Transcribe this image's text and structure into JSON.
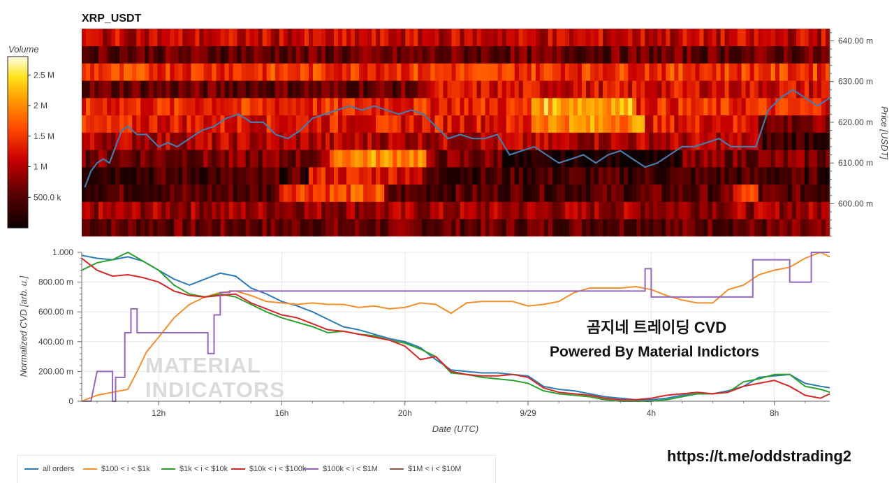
{
  "colors": {
    "all_orders": "#2c7bb6",
    "r100_1k": "#f28e2b",
    "r1k_10k": "#2ca02c",
    "r10k_100k": "#d62728",
    "r100k_1m": "#9467bd",
    "r1m_10m": "#8c564b",
    "price_line": "#4a78a8"
  },
  "url_caption": "https://t.me/oddstrading2",
  "chart_data": [
    {
      "type": "heatmap",
      "title": "XRP_USDT",
      "ylabel": "Price [USDT]",
      "ylim": [
        592,
        643
      ],
      "y_ticks": [
        {
          "value": 600,
          "label": "600.00 m"
        },
        {
          "value": 610,
          "label": "610.00 m"
        },
        {
          "value": 620,
          "label": "620.00 m"
        },
        {
          "value": 630,
          "label": "630.00 m"
        },
        {
          "value": 640,
          "label": "640.00 m"
        }
      ],
      "colorbar": {
        "title": "Volume",
        "range": [
          0,
          2.8
        ],
        "ticks": [
          {
            "value": 0.5,
            "label": "500.0 k"
          },
          {
            "value": 1.0,
            "label": "1 M"
          },
          {
            "value": 1.5,
            "label": "1.5 M"
          },
          {
            "value": 2.0,
            "label": "2 M"
          },
          {
            "value": 2.5,
            "label": "2.5 M"
          }
        ]
      },
      "row_base_volume": [
        0.6,
        0.9,
        0.5,
        0.4,
        0.7,
        1.0,
        1.3,
        1.4,
        1.2,
        1.5,
        0.6,
        1.1
      ],
      "price_line": {
        "x": [
          9.6,
          9.8,
          10.0,
          10.2,
          10.4,
          10.6,
          10.8,
          11.0,
          11.3,
          11.6,
          12.0,
          12.3,
          12.6,
          13.0,
          13.4,
          13.8,
          14.2,
          14.6,
          15.0,
          15.4,
          15.8,
          16.2,
          16.6,
          17.0,
          17.4,
          17.8,
          18.2,
          18.6,
          19.0,
          19.4,
          19.8,
          20.2,
          20.6,
          21.0,
          21.4,
          21.8,
          22.2,
          22.6,
          23.0,
          23.4,
          23.8,
          24.2,
          24.6,
          25.0,
          25.4,
          25.8,
          26.2,
          26.6,
          27.0,
          27.4,
          27.8,
          28.2,
          28.6,
          29.0,
          29.4,
          29.8,
          30.2,
          30.6,
          31.0,
          31.4,
          31.8,
          32.2,
          32.6,
          33.0,
          33.4,
          33.8
        ],
        "y": [
          604,
          608,
          610,
          611,
          610,
          614,
          618,
          619,
          617,
          617,
          614,
          615,
          614,
          616,
          618,
          619,
          621,
          622,
          620,
          620,
          617,
          616,
          618,
          621,
          622,
          623,
          624,
          623,
          624,
          623,
          622,
          623,
          622,
          619,
          616,
          617,
          616,
          616,
          617,
          612,
          613,
          614,
          612,
          610,
          611,
          612,
          610,
          612,
          613,
          611,
          609,
          610,
          612,
          614,
          614,
          615,
          616,
          614,
          614,
          614,
          623,
          626,
          628,
          626,
          624,
          626
        ]
      }
    },
    {
      "type": "line",
      "xlabel": "Date (UTC)",
      "ylabel": "Normalized CVD [arb. u.]",
      "xlim": [
        9.5,
        33.8
      ],
      "ylim": [
        0,
        1.0
      ],
      "x_ticks": [
        {
          "value": 12,
          "label": "12h"
        },
        {
          "value": 16,
          "label": "16h"
        },
        {
          "value": 20,
          "label": "20h"
        },
        {
          "value": 24,
          "label": "9/29"
        },
        {
          "value": 28,
          "label": "4h"
        },
        {
          "value": 32,
          "label": "8h"
        }
      ],
      "y_ticks": [
        {
          "value": 0,
          "label": "0"
        },
        {
          "value": 0.2,
          "label": "200.00 m"
        },
        {
          "value": 0.4,
          "label": "400.00 m"
        },
        {
          "value": 0.6,
          "label": "600.00 m"
        },
        {
          "value": 0.8,
          "label": "800.00 m"
        },
        {
          "value": 1.0,
          "label": "1.000"
        }
      ],
      "annotations": [
        "곰지네 트레이딩 CVD",
        "Powered By Material Indictors"
      ],
      "watermark": [
        "MATERIAL",
        "INDICATORS"
      ],
      "legend_position": "bottom",
      "series": [
        {
          "name": "all orders",
          "color_key": "all_orders",
          "x": [
            9.5,
            10,
            10.5,
            11,
            11.5,
            12,
            12.5,
            13,
            13.5,
            14,
            14.5,
            15,
            15.5,
            16,
            16.5,
            17,
            17.5,
            18,
            18.5,
            19,
            19.5,
            20,
            20.5,
            21,
            21.5,
            22,
            22.5,
            23,
            23.5,
            24,
            24.5,
            25,
            25.5,
            26,
            26.5,
            27,
            27.5,
            28,
            28.5,
            29,
            29.5,
            30,
            30.5,
            31,
            31.5,
            32,
            32.5,
            33,
            33.5,
            33.8
          ],
          "y": [
            0.98,
            0.96,
            0.95,
            0.97,
            0.94,
            0.88,
            0.82,
            0.78,
            0.82,
            0.86,
            0.84,
            0.76,
            0.72,
            0.67,
            0.64,
            0.6,
            0.55,
            0.5,
            0.48,
            0.45,
            0.42,
            0.4,
            0.36,
            0.28,
            0.21,
            0.2,
            0.19,
            0.19,
            0.18,
            0.17,
            0.1,
            0.08,
            0.07,
            0.05,
            0.03,
            0.02,
            0.01,
            0.01,
            0.02,
            0.04,
            0.05,
            0.05,
            0.07,
            0.1,
            0.16,
            0.17,
            0.18,
            0.12,
            0.1,
            0.09
          ]
        },
        {
          "name": "$100 < i < $1k",
          "color_key": "r100_1k",
          "x": [
            9.5,
            10,
            10.5,
            11,
            11.3,
            11.6,
            12,
            12.5,
            13,
            13.5,
            14,
            14.5,
            15,
            15.5,
            16,
            16.5,
            17,
            17.5,
            18,
            18.5,
            19,
            19.5,
            20,
            20.5,
            21,
            21.5,
            22,
            22.5,
            23,
            23.5,
            24,
            24.5,
            25,
            25.5,
            26,
            26.5,
            27,
            27.5,
            28,
            28.5,
            29,
            29.5,
            30,
            30.5,
            31,
            31.5,
            32,
            32.5,
            33,
            33.5,
            33.8
          ],
          "y": [
            0.0,
            0.04,
            0.06,
            0.08,
            0.2,
            0.33,
            0.43,
            0.56,
            0.65,
            0.7,
            0.73,
            0.74,
            0.71,
            0.67,
            0.66,
            0.65,
            0.66,
            0.65,
            0.65,
            0.63,
            0.64,
            0.62,
            0.63,
            0.66,
            0.65,
            0.59,
            0.66,
            0.67,
            0.67,
            0.67,
            0.64,
            0.65,
            0.67,
            0.73,
            0.76,
            0.76,
            0.76,
            0.77,
            0.75,
            0.71,
            0.68,
            0.66,
            0.66,
            0.75,
            0.78,
            0.85,
            0.88,
            0.9,
            0.96,
            1.0,
            0.97
          ]
        },
        {
          "name": "$1k < i < $10k",
          "color_key": "r1k_10k",
          "x": [
            9.5,
            10,
            10.5,
            11,
            11.5,
            12,
            12.5,
            13,
            13.5,
            14,
            14.5,
            15,
            15.5,
            16,
            16.5,
            17,
            17.5,
            18,
            18.5,
            19,
            19.5,
            20,
            20.5,
            21,
            21.5,
            22,
            22.5,
            23,
            23.5,
            24,
            24.5,
            25,
            25.5,
            26,
            26.5,
            27,
            27.5,
            28,
            28.5,
            29,
            29.5,
            30,
            30.5,
            31,
            31.5,
            32,
            32.5,
            33,
            33.5,
            33.8
          ],
          "y": [
            0.88,
            0.93,
            0.95,
            1.0,
            0.94,
            0.88,
            0.78,
            0.72,
            0.7,
            0.72,
            0.7,
            0.65,
            0.6,
            0.56,
            0.53,
            0.5,
            0.46,
            0.47,
            0.45,
            0.44,
            0.41,
            0.39,
            0.35,
            0.3,
            0.19,
            0.18,
            0.16,
            0.15,
            0.14,
            0.12,
            0.07,
            0.05,
            0.04,
            0.03,
            0.01,
            0.0,
            0.0,
            0.0,
            0.01,
            0.03,
            0.05,
            0.05,
            0.06,
            0.13,
            0.15,
            0.18,
            0.18,
            0.1,
            0.08,
            0.06
          ]
        },
        {
          "name": "$10k < i < $100k",
          "color_key": "r10k_100k",
          "x": [
            9.5,
            10,
            10.5,
            11,
            11.5,
            12,
            12.5,
            13,
            13.5,
            14,
            14.5,
            15,
            15.5,
            16,
            16.5,
            17,
            17.5,
            18,
            18.5,
            19,
            19.5,
            20,
            20.5,
            21,
            21.5,
            22,
            22.5,
            23,
            23.5,
            24,
            24.5,
            25,
            25.5,
            26,
            26.5,
            27,
            27.5,
            28,
            28.5,
            29,
            29.5,
            30,
            30.5,
            31,
            31.5,
            32,
            32.5,
            33,
            33.5,
            33.8
          ],
          "y": [
            0.96,
            0.88,
            0.84,
            0.85,
            0.83,
            0.8,
            0.74,
            0.71,
            0.7,
            0.71,
            0.72,
            0.66,
            0.62,
            0.58,
            0.56,
            0.52,
            0.48,
            0.47,
            0.45,
            0.43,
            0.41,
            0.37,
            0.28,
            0.3,
            0.2,
            0.18,
            0.17,
            0.17,
            0.18,
            0.16,
            0.09,
            0.06,
            0.05,
            0.04,
            0.02,
            0.01,
            0.01,
            0.02,
            0.04,
            0.05,
            0.06,
            0.05,
            0.06,
            0.1,
            0.12,
            0.14,
            0.1,
            0.04,
            0.02,
            0.05
          ]
        },
        {
          "name": "$100k < i < $1M",
          "color_key": "r100k_1m",
          "x": [
            9.5,
            9.8,
            10.0,
            10.5,
            10.5,
            10.6,
            10.6,
            10.9,
            10.9,
            11.1,
            11.1,
            11.3,
            11.3,
            11.5,
            11.5,
            13.6,
            13.6,
            13.8,
            13.8,
            14.0,
            14.0,
            14.3,
            14.3,
            27.8,
            27.8,
            28.0,
            28.0,
            29.4,
            29.4,
            31.3,
            31.3,
            32.5,
            32.5,
            33.2,
            33.2,
            33.8
          ],
          "y": [
            0.0,
            0.0,
            0.2,
            0.2,
            0.0,
            0.0,
            0.16,
            0.16,
            0.46,
            0.46,
            0.62,
            0.62,
            0.46,
            0.46,
            0.46,
            0.46,
            0.32,
            0.32,
            0.58,
            0.58,
            0.73,
            0.73,
            0.74,
            0.74,
            0.89,
            0.89,
            0.7,
            0.7,
            0.7,
            0.7,
            0.95,
            0.95,
            0.8,
            0.8,
            1.0,
            1.0
          ]
        },
        {
          "name": "$1M < i < $10M",
          "color_key": "r1m_10m",
          "x": [],
          "y": []
        }
      ]
    }
  ]
}
